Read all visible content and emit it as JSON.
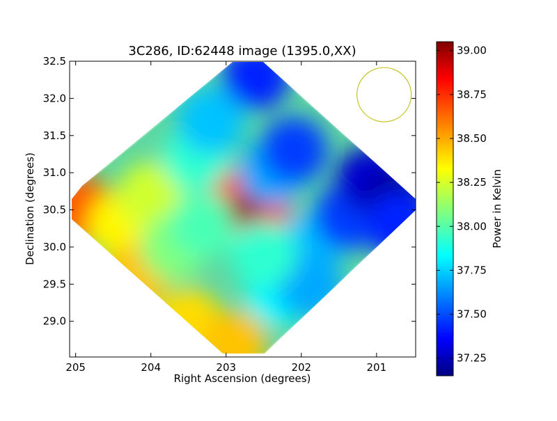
{
  "chart_data": {
    "type": "heatmap",
    "title": "3C286, ID:62448 image (1395.0,XX)",
    "xlabel": "Right Ascension (degrees)",
    "ylabel": "Declination (degrees)",
    "xlim": [
      205.08,
      200.48
    ],
    "ylim": [
      28.52,
      32.5
    ],
    "x_ticks": [
      205,
      204,
      203,
      202,
      201
    ],
    "x_tick_labels": [
      "205",
      "204",
      "203",
      "202",
      "201"
    ],
    "y_ticks": [
      29.0,
      29.5,
      30.0,
      30.5,
      31.0,
      31.5,
      32.0,
      32.5
    ],
    "y_tick_labels": [
      "29.0",
      "29.5",
      "30.0",
      "30.5",
      "31.0",
      "31.5",
      "32.0",
      "32.5"
    ],
    "colorbar": {
      "label": "Power in Kelvin",
      "range": [
        37.15,
        39.05
      ],
      "ticks": [
        37.25,
        37.5,
        37.75,
        38.0,
        38.25,
        38.5,
        38.75,
        39.0
      ],
      "tick_labels": [
        "37.25",
        "37.50",
        "37.75",
        "38.00",
        "38.25",
        "38.50",
        "38.75",
        "39.00"
      ],
      "colormap": "jet"
    },
    "map_extent_corners": {
      "north": [
        202.75,
        32.5
      ],
      "east": [
        205.05,
        30.5
      ],
      "south": [
        202.75,
        28.55
      ],
      "west": [
        200.55,
        30.5
      ]
    },
    "samples": [
      {
        "ra": 202.75,
        "dec": 30.5,
        "value": 39.02
      },
      {
        "ra": 202.95,
        "dec": 30.6,
        "value": 38.7
      },
      {
        "ra": 202.6,
        "dec": 30.45,
        "value": 38.75
      },
      {
        "ra": 204.9,
        "dec": 30.5,
        "value": 38.65
      },
      {
        "ra": 204.4,
        "dec": 30.3,
        "value": 38.35
      },
      {
        "ra": 204.0,
        "dec": 30.7,
        "value": 38.25
      },
      {
        "ra": 204.2,
        "dec": 29.6,
        "value": 38.45
      },
      {
        "ra": 203.5,
        "dec": 29.0,
        "value": 38.4
      },
      {
        "ra": 202.9,
        "dec": 28.7,
        "value": 38.45
      },
      {
        "ra": 203.7,
        "dec": 30.0,
        "value": 38.1
      },
      {
        "ra": 203.4,
        "dec": 31.2,
        "value": 37.95
      },
      {
        "ra": 203.2,
        "dec": 31.7,
        "value": 37.75
      },
      {
        "ra": 202.6,
        "dec": 32.3,
        "value": 37.45
      },
      {
        "ra": 202.4,
        "dec": 31.0,
        "value": 37.7
      },
      {
        "ra": 202.1,
        "dec": 31.3,
        "value": 37.5
      },
      {
        "ra": 202.3,
        "dec": 29.4,
        "value": 37.85
      },
      {
        "ra": 201.9,
        "dec": 30.0,
        "value": 37.75
      },
      {
        "ra": 201.4,
        "dec": 30.4,
        "value": 37.5
      },
      {
        "ra": 201.1,
        "dec": 30.9,
        "value": 37.3
      },
      {
        "ra": 200.75,
        "dec": 30.6,
        "value": 37.2
      },
      {
        "ra": 200.7,
        "dec": 30.3,
        "value": 37.45
      },
      {
        "ra": 201.9,
        "dec": 29.5,
        "value": 37.7
      },
      {
        "ra": 202.5,
        "dec": 29.9,
        "value": 37.95
      },
      {
        "ra": 203.3,
        "dec": 30.3,
        "value": 38.0
      }
    ],
    "beam_circle": {
      "ra": 200.9,
      "dec": 32.05,
      "color": "#c4c422"
    },
    "grid": false,
    "legend": "none"
  }
}
